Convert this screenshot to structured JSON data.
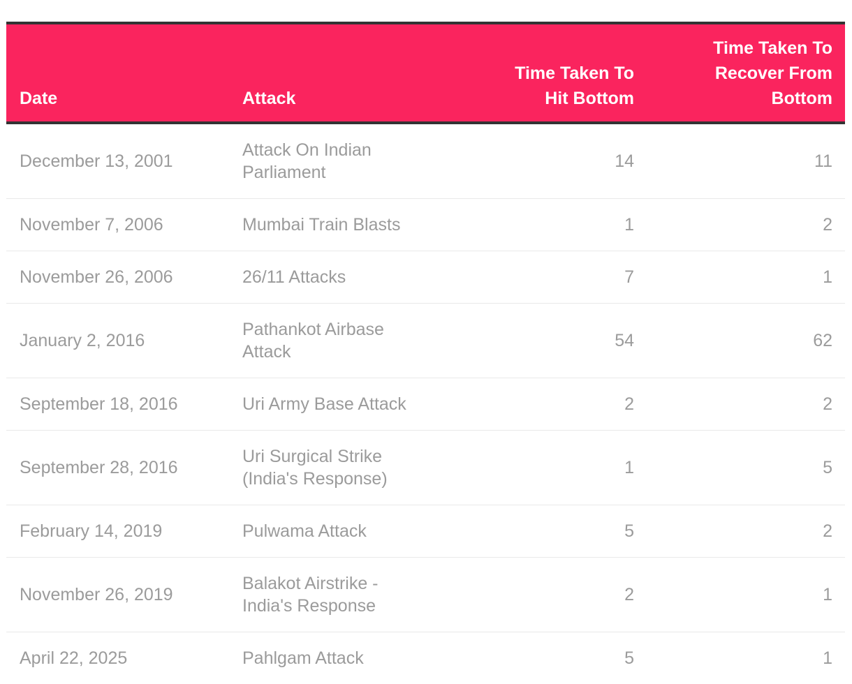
{
  "colors": {
    "header_bg": "#FA245E",
    "header_text": "#FFFFFF",
    "dark_border": "#333333",
    "body_text": "#9B9B9B",
    "row_divider": "#E9E9E9",
    "page_bg": "#FFFFFF"
  },
  "table": {
    "columns": [
      {
        "label": "Date",
        "align": "left"
      },
      {
        "label": "Attack",
        "align": "left"
      },
      {
        "label": "Time Taken To\nHit Bottom",
        "align": "right"
      },
      {
        "label": "Time Taken To\nRecover From\nBottom",
        "align": "right"
      }
    ],
    "rows": [
      {
        "date": "December 13, 2001",
        "attack": "Attack On Indian Parliament",
        "hit_bottom": "14",
        "recover": "11"
      },
      {
        "date": "November 7, 2006",
        "attack": "Mumbai Train Blasts",
        "hit_bottom": "1",
        "recover": "2"
      },
      {
        "date": "November 26, 2006",
        "attack": "26/11 Attacks",
        "hit_bottom": "7",
        "recover": "1"
      },
      {
        "date": "January 2, 2016",
        "attack": "Pathankot Airbase Attack",
        "hit_bottom": "54",
        "recover": "62"
      },
      {
        "date": "September 18, 2016",
        "attack": "Uri Army Base Attack",
        "hit_bottom": "2",
        "recover": "2"
      },
      {
        "date": "September 28, 2016",
        "attack": "Uri Surgical Strike (India's Response)",
        "hit_bottom": "1",
        "recover": "5"
      },
      {
        "date": "February 14, 2019",
        "attack": "Pulwama Attack",
        "hit_bottom": "5",
        "recover": "2"
      },
      {
        "date": "November 26, 2019",
        "attack": "Balakot Airstrike - India's Response",
        "hit_bottom": "2",
        "recover": "1"
      },
      {
        "date": "April 22, 2025",
        "attack": "Pahlgam Attack",
        "hit_bottom": "5",
        "recover": "1"
      }
    ]
  },
  "chart_data": {
    "type": "table",
    "columns": [
      "Date",
      "Attack",
      "Time Taken To Hit Bottom",
      "Time Taken To Recover From Bottom"
    ],
    "rows": [
      [
        "December 13, 2001",
        "Attack On Indian Parliament",
        14,
        11
      ],
      [
        "November 7, 2006",
        "Mumbai Train Blasts",
        1,
        2
      ],
      [
        "November 26, 2006",
        "26/11 Attacks",
        7,
        1
      ],
      [
        "January 2, 2016",
        "Pathankot Airbase Attack",
        54,
        62
      ],
      [
        "September 18, 2016",
        "Uri Army Base Attack",
        2,
        2
      ],
      [
        "September 28, 2016",
        "Uri Surgical Strike (India's Response)",
        1,
        5
      ],
      [
        "February 14, 2019",
        "Pulwama Attack",
        5,
        2
      ],
      [
        "November 26, 2019",
        "Balakot Airstrike - India's Response",
        2,
        1
      ],
      [
        "April 22, 2025",
        "Pahlgam Attack",
        5,
        1
      ]
    ]
  }
}
